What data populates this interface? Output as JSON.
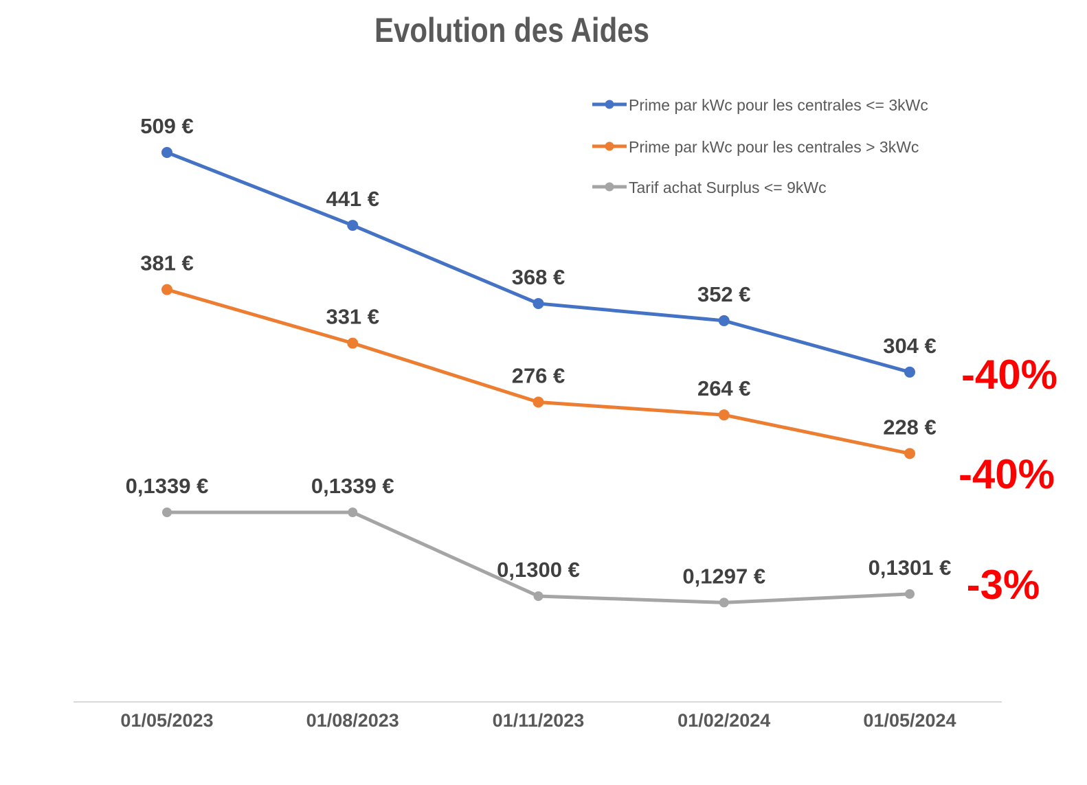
{
  "title": "Evolution des Aides",
  "colors": {
    "series_blue": "#4472C4",
    "series_orange": "#ED7D31",
    "series_gray": "#A5A5A5",
    "annotation_red": "#FF0000",
    "title_text": "#595959",
    "data_label_text": "#404040",
    "axis_label_text": "#595959",
    "axis_line": "#D9D9D9",
    "background": "#FFFFFF"
  },
  "chart_data": {
    "type": "line",
    "title": "Evolution des Aides",
    "categories": [
      "01/05/2023",
      "01/08/2023",
      "01/11/2023",
      "01/02/2024",
      "01/05/2024"
    ],
    "series": [
      {
        "name": "Prime par kWc pour les centrales <= 3kWc",
        "color": "#4472C4",
        "axis": "primary",
        "values": [
          509,
          441,
          368,
          352,
          304
        ],
        "labels": [
          "509 €",
          "441 €",
          "368 €",
          "352 €",
          "304 €"
        ]
      },
      {
        "name": "Prime par kWc pour les centrales > 3kWc",
        "color": "#ED7D31",
        "axis": "primary",
        "values": [
          381,
          331,
          276,
          264,
          228
        ],
        "labels": [
          "381 €",
          "331 €",
          "276 €",
          "264 €",
          "228 €"
        ]
      },
      {
        "name": "Tarif achat Surplus <= 9kWc",
        "color": "#A5A5A5",
        "axis": "secondary",
        "values": [
          0.1339,
          0.1339,
          0.13,
          0.1297,
          0.1301
        ],
        "labels": [
          "0,1339 €",
          "0,1339 €",
          "0,1300 €",
          "0,1297 €",
          "0,1301 €"
        ]
      }
    ],
    "annotations": [
      {
        "text": "-40%",
        "color": "#FF0000",
        "series": 0,
        "x": 1469,
        "y": 566
      },
      {
        "text": "-40%",
        "color": "#FF0000",
        "series": 1,
        "x": 1465,
        "y": 711
      },
      {
        "text": "-3%",
        "color": "#FF0000",
        "series": 2,
        "x": 1460,
        "y": 872
      }
    ],
    "legend_position": "top-right",
    "grid": false,
    "data_labels": true,
    "markers": true,
    "primary_axis": {
      "unit": "€",
      "min": 0,
      "max": 550,
      "visible": false
    },
    "secondary_axis": {
      "unit": "€",
      "min": 0.125,
      "max": 0.1339,
      "visible": false
    }
  }
}
